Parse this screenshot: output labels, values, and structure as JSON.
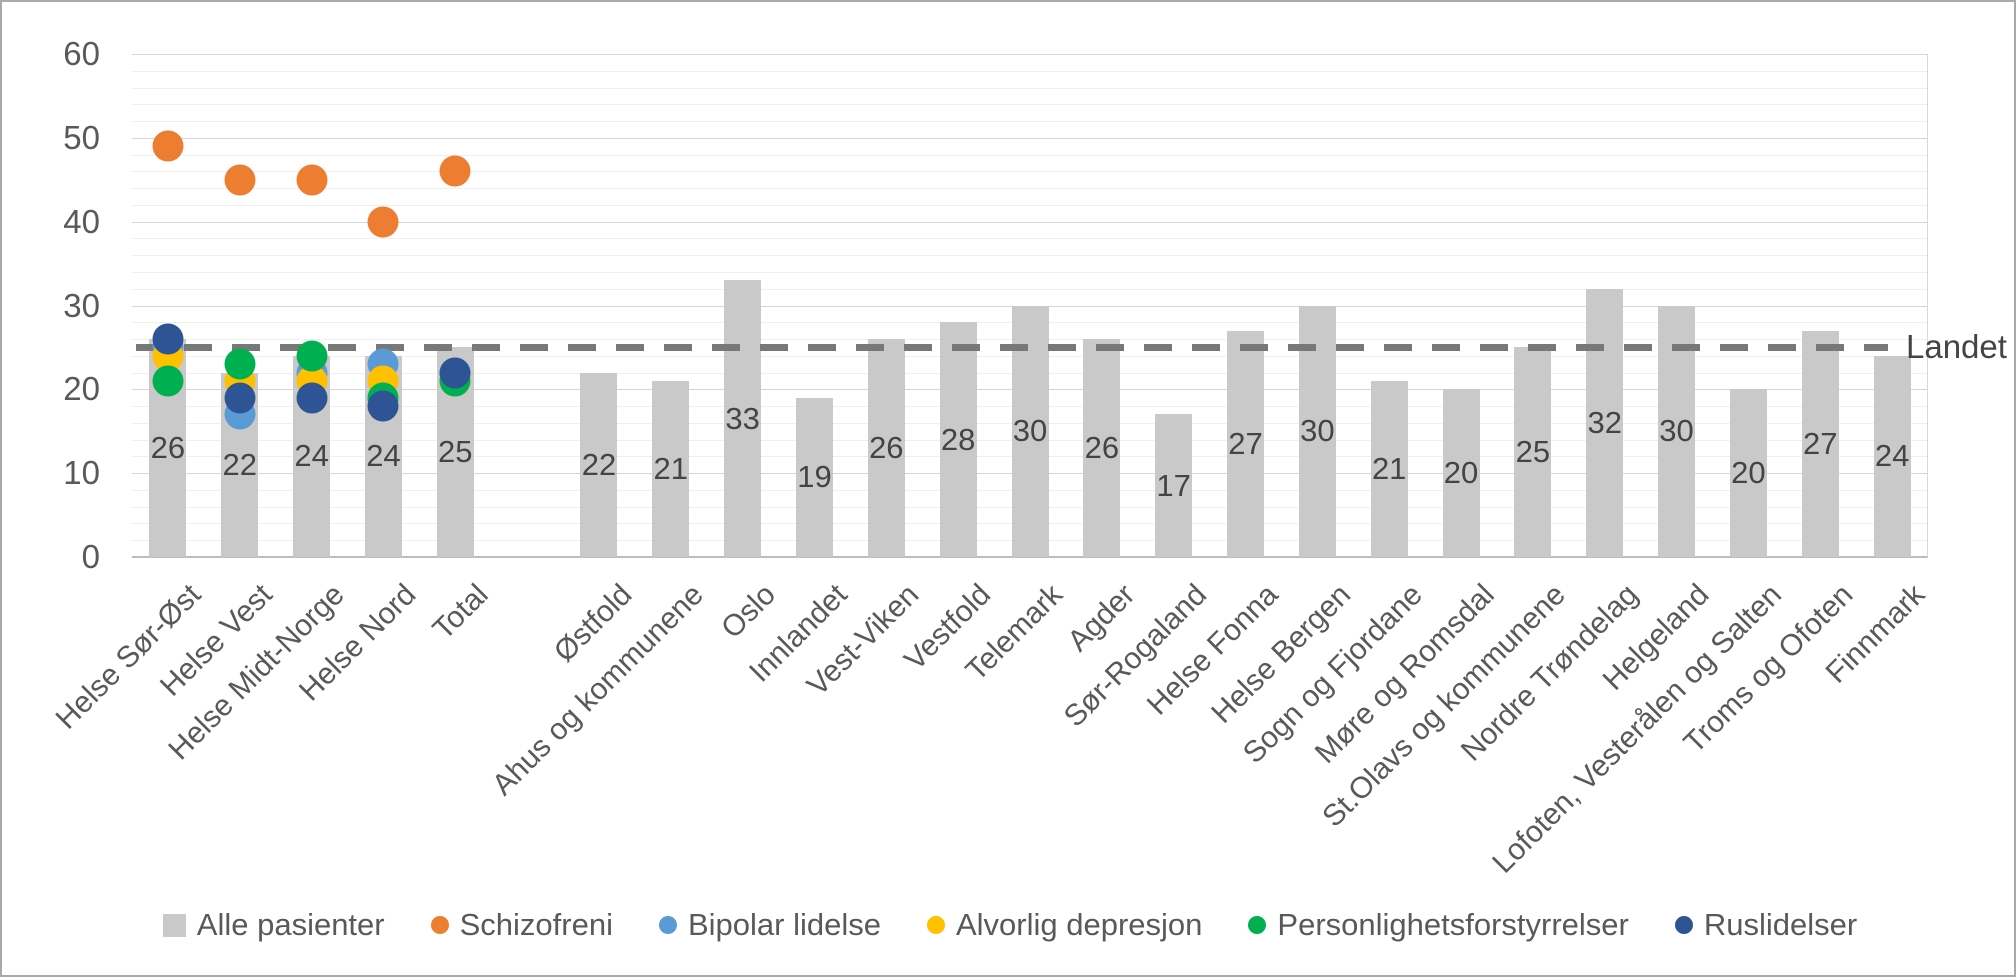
{
  "figure": {
    "reference_label": "Landet"
  },
  "chart_data": {
    "type": "bar",
    "subtype": "bar-with-scatter-overlay",
    "title": "",
    "xlabel": "",
    "ylabel": "",
    "y_axis": {
      "min": 0,
      "max": 60,
      "major_step": 10,
      "minor_step": 2,
      "ticks": [
        0,
        10,
        20,
        30,
        40,
        50,
        60
      ]
    },
    "grid": "major-and-minor-horizontal",
    "legend_position": "bottom",
    "categories": [
      "Helse Sør-Øst",
      "Helse Vest",
      "Helse Midt-Norge",
      "Helse Nord",
      "Total",
      "",
      "Østfold",
      "Ahus og kommunene",
      "Oslo",
      "Innlandet",
      "Vest-Viken",
      "Vestfold",
      "Telemark",
      "Agder",
      "Sør-Rogaland",
      "Helse Fonna",
      "Helse Bergen",
      "Sogn og Fjordane",
      "Møre og Romsdal",
      "St.Olavs og kommunene",
      "Nordre Trøndelag",
      "Helgeland",
      "Lofoten, Vesterålen og Salten",
      "Troms og Ofoten",
      "Finnmark"
    ],
    "series": [
      {
        "name": "Alle pasienter",
        "kind": "bar",
        "color": "#c9c9c9",
        "show_labels": true,
        "values": [
          26,
          22,
          24,
          24,
          25,
          null,
          22,
          21,
          33,
          19,
          26,
          28,
          30,
          26,
          17,
          27,
          30,
          21,
          20,
          25,
          32,
          30,
          20,
          27,
          24
        ]
      },
      {
        "name": "Schizofreni",
        "kind": "scatter",
        "color": "#ed7d31",
        "show_labels": false,
        "values": [
          49,
          45,
          45,
          40,
          46,
          null,
          null,
          null,
          null,
          null,
          null,
          null,
          null,
          null,
          null,
          null,
          null,
          null,
          null,
          null,
          null,
          null,
          null,
          null,
          null
        ]
      },
      {
        "name": "Bipolar lidelse",
        "kind": "scatter",
        "color": "#5b9bd5",
        "show_labels": false,
        "values": [
          25,
          17,
          22,
          23,
          22,
          null,
          null,
          null,
          null,
          null,
          null,
          null,
          null,
          null,
          null,
          null,
          null,
          null,
          null,
          null,
          null,
          null,
          null,
          null,
          null
        ]
      },
      {
        "name": "Alvorlig depresjon",
        "kind": "scatter",
        "color": "#ffc000",
        "show_labels": false,
        "values": [
          24,
          21,
          21,
          21,
          21,
          null,
          null,
          null,
          null,
          null,
          null,
          null,
          null,
          null,
          null,
          null,
          null,
          null,
          null,
          null,
          null,
          null,
          null,
          null,
          null
        ]
      },
      {
        "name": "Personlighetsforstyrrelser",
        "kind": "scatter",
        "color": "#00b050",
        "show_labels": false,
        "values": [
          21,
          23,
          24,
          19,
          21,
          null,
          null,
          null,
          null,
          null,
          null,
          null,
          null,
          null,
          null,
          null,
          null,
          null,
          null,
          null,
          null,
          null,
          null,
          null,
          null
        ]
      },
      {
        "name": "Ruslidelser",
        "kind": "scatter",
        "color": "#2f5496",
        "show_labels": false,
        "values": [
          26,
          19,
          19,
          18,
          22,
          null,
          null,
          null,
          null,
          null,
          null,
          null,
          null,
          null,
          null,
          null,
          null,
          null,
          null,
          null,
          null,
          null,
          null,
          null,
          null
        ]
      }
    ],
    "reference_line": {
      "label": "Landet",
      "value": 25,
      "style": "dashed",
      "color": "#787878"
    }
  },
  "colors": {
    "background": "#ffffff",
    "figure_border": "#a9a9a9",
    "bar_fill": "#c9c9c9",
    "grid_major": "#d6d6d6",
    "grid_minor": "#efefef",
    "axis_line": "#bdbdbd",
    "tick_text": "#595959",
    "data_label_text": "#444444",
    "reference_dash": "#787878"
  }
}
